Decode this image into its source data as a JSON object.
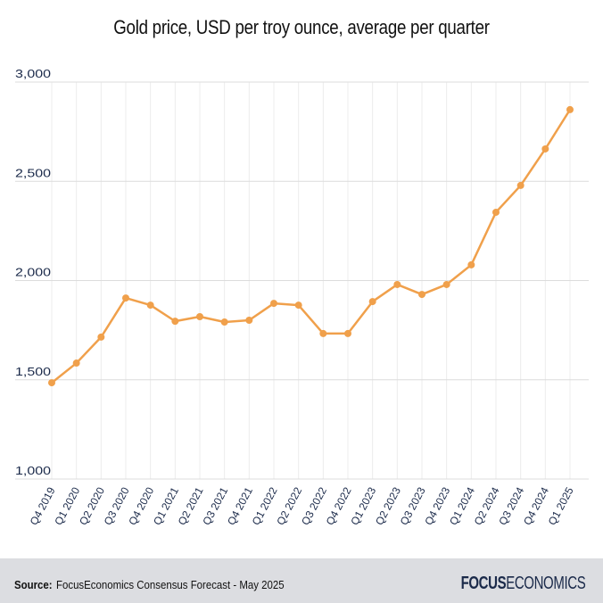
{
  "chart_data": {
    "type": "line",
    "title": "Gold price, USD per troy ounce, average per quarter",
    "categories": [
      "Q4 2019",
      "Q1 2020",
      "Q2 2020",
      "Q3 2020",
      "Q4 2020",
      "Q1 2021",
      "Q2 2021",
      "Q3 2021",
      "Q4 2021",
      "Q1 2022",
      "Q2 2022",
      "Q3 2022",
      "Q4 2022",
      "Q1 2023",
      "Q2 2023",
      "Q3 2023",
      "Q4 2023",
      "Q1 2024",
      "Q2 2024",
      "Q3 2024",
      "Q4 2024",
      "Q1 2025"
    ],
    "values": [
      1485,
      1584,
      1715,
      1912,
      1876,
      1795,
      1818,
      1791,
      1800,
      1885,
      1876,
      1733,
      1733,
      1894,
      1980,
      1930,
      1980,
      2079,
      2344,
      2479,
      2663,
      2861
    ],
    "ylim": [
      1000,
      3000
    ],
    "yticks": [
      1000,
      1500,
      2000,
      2500,
      3000
    ],
    "ytick_labels": [
      "1,000",
      "1,500",
      "2,000",
      "2,500",
      "3,000"
    ],
    "grid": true,
    "color": "#f0a04b"
  },
  "footer": {
    "source_label": "Source:",
    "source_text": "FocusEconomics Consensus Forecast - May 2025",
    "logo_bold": "FOCUS",
    "logo_light": "ECONOMICS"
  }
}
